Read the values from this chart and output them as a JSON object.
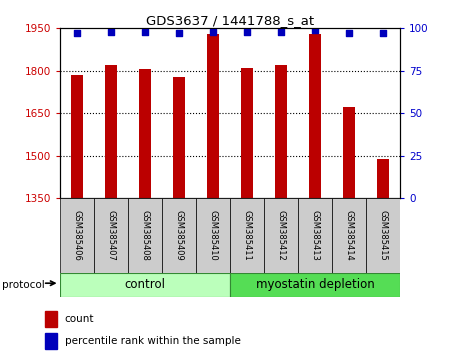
{
  "title": "GDS3637 / 1441788_s_at",
  "samples": [
    "GSM385406",
    "GSM385407",
    "GSM385408",
    "GSM385409",
    "GSM385410",
    "GSM385411",
    "GSM385412",
    "GSM385413",
    "GSM385414",
    "GSM385415"
  ],
  "counts": [
    1785,
    1820,
    1808,
    1778,
    1930,
    1810,
    1822,
    1930,
    1673,
    1487
  ],
  "percentile_ranks": [
    97,
    98,
    98,
    97,
    98,
    98,
    98,
    99,
    97,
    97
  ],
  "ylim_left": [
    1350,
    1950
  ],
  "ylim_right": [
    0,
    100
  ],
  "yticks_left": [
    1350,
    1500,
    1650,
    1800,
    1950
  ],
  "yticks_right": [
    0,
    25,
    50,
    75,
    100
  ],
  "bar_color": "#bb0000",
  "dot_color": "#0000bb",
  "control_label": "control",
  "myostatin_label": "myostatin depletion",
  "protocol_label": "protocol",
  "legend_count": "count",
  "legend_percentile": "percentile rank within the sample",
  "left_axis_color": "#cc0000",
  "right_axis_color": "#0000cc",
  "bar_width": 0.35,
  "figsize": [
    4.65,
    3.54
  ],
  "dpi": 100,
  "control_color": "#bbffbb",
  "myostatin_color": "#55dd55",
  "label_box_color": "#cccccc",
  "gridline_ticks": [
    1500,
    1650,
    1800
  ]
}
